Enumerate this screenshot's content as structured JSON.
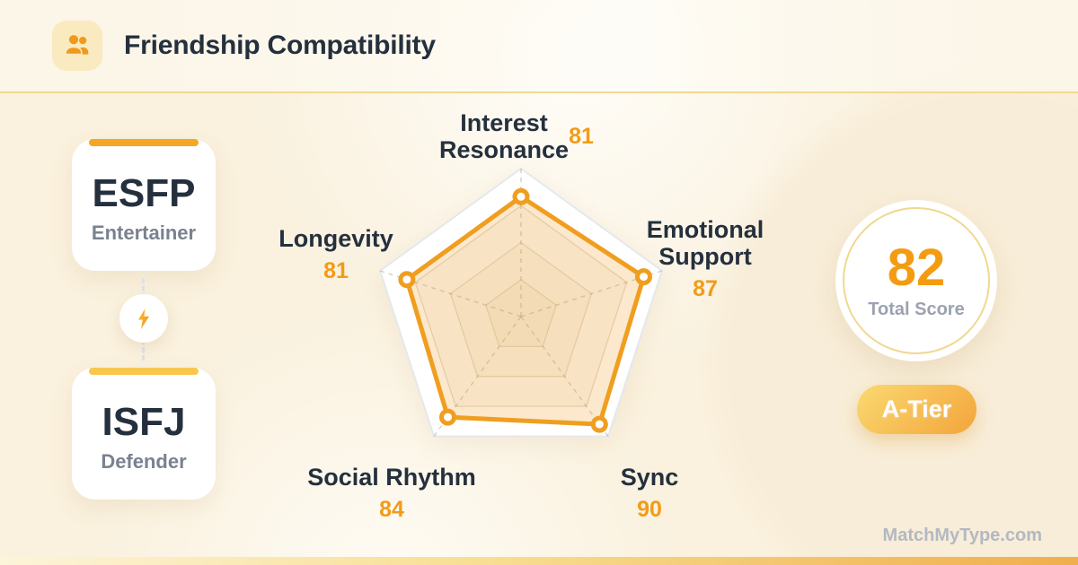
{
  "header": {
    "title": "Friendship Compatibility",
    "icon": "people-icon"
  },
  "pair": {
    "first": {
      "code": "ESFP",
      "nickname": "Entertainer",
      "accent": "#F5A623"
    },
    "second": {
      "code": "ISFJ",
      "nickname": "Defender",
      "accent": "#F8C84E"
    },
    "connector_icon": "lightning-bolt-icon"
  },
  "chart_data": {
    "type": "radar",
    "categories": [
      "Interest Resonance",
      "Emotional Support",
      "Sync",
      "Social Rhythm",
      "Longevity"
    ],
    "values": [
      81,
      87,
      90,
      84,
      81
    ],
    "max": 100,
    "rings_percent": [
      25,
      50,
      75,
      100
    ],
    "grid": "pentagon",
    "legend": "none",
    "colors": {
      "stroke": "#F09E1F",
      "fill": "rgba(242,166,60,0.26)",
      "outer_grid": "#E4E8EE",
      "inner_grid": "rgba(185,168,130,0.40)",
      "spoke": "rgba(170,158,135,0.50)",
      "value_text": "#F39B17",
      "label_text": "#25303E"
    }
  },
  "score": {
    "value": "82",
    "label": "Total Score",
    "tier_label": "A-Tier"
  },
  "watermark": "MatchMyType.com",
  "colors": {
    "accent_orange": "#F5A623",
    "accent_yellow": "#F8C84E",
    "navy": "#25303E",
    "gray_text": "#7A828F",
    "background_cream": "#FAF1DE"
  }
}
